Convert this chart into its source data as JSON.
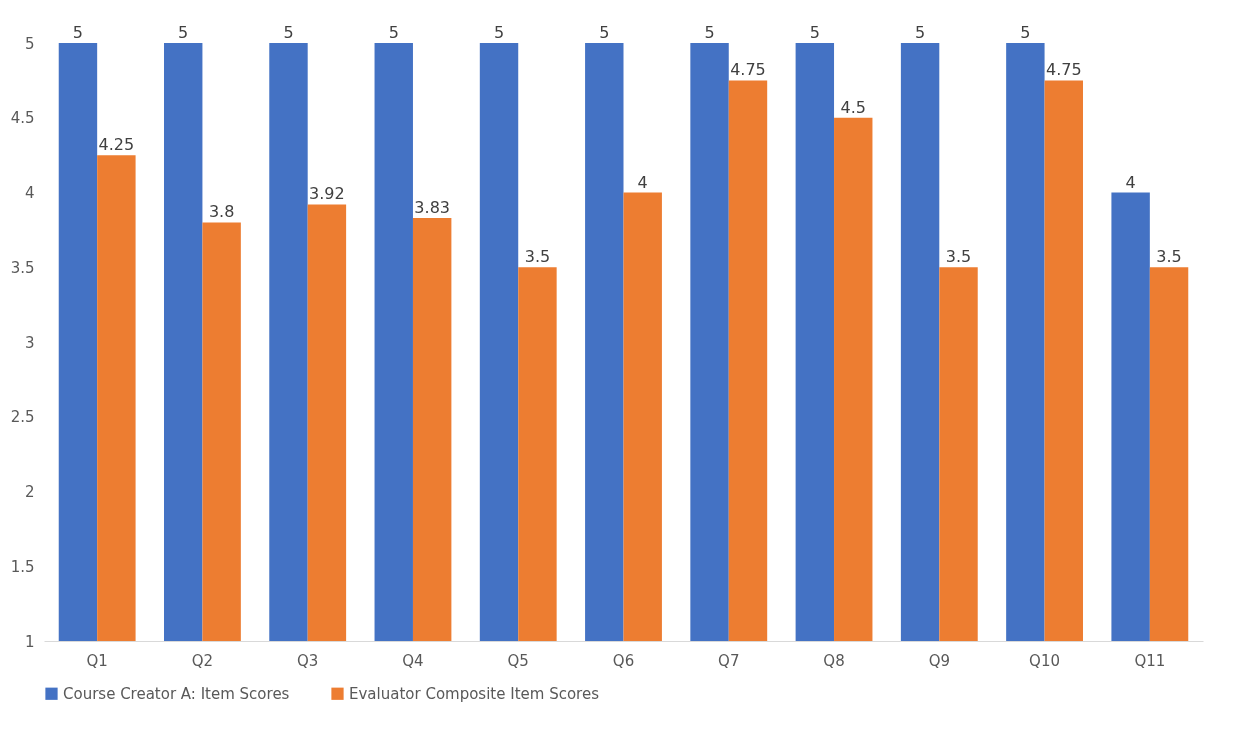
{
  "chart_data": {
    "type": "bar",
    "categories": [
      "Q1",
      "Q2",
      "Q3",
      "Q4",
      "Q5",
      "Q6",
      "Q7",
      "Q8",
      "Q9",
      "Q10",
      "Q11"
    ],
    "series": [
      {
        "name": "Course Creator A: Item Scores",
        "color": "#4472c4",
        "values": [
          5,
          5,
          5,
          5,
          5,
          5,
          5,
          5,
          5,
          5,
          4
        ]
      },
      {
        "name": "Evaluator Composite Item Scores",
        "color": "#ed7d31",
        "values": [
          4.25,
          3.8,
          3.92,
          3.83,
          3.5,
          4,
          4.75,
          4.5,
          3.5,
          4.75,
          3.5
        ]
      }
    ],
    "ylim": [
      1,
      5
    ],
    "yticks": [
      1,
      1.5,
      2,
      2.5,
      3,
      3.5,
      4,
      4.5,
      5
    ],
    "grid": false,
    "legend": "bottom",
    "data_labels": true
  }
}
